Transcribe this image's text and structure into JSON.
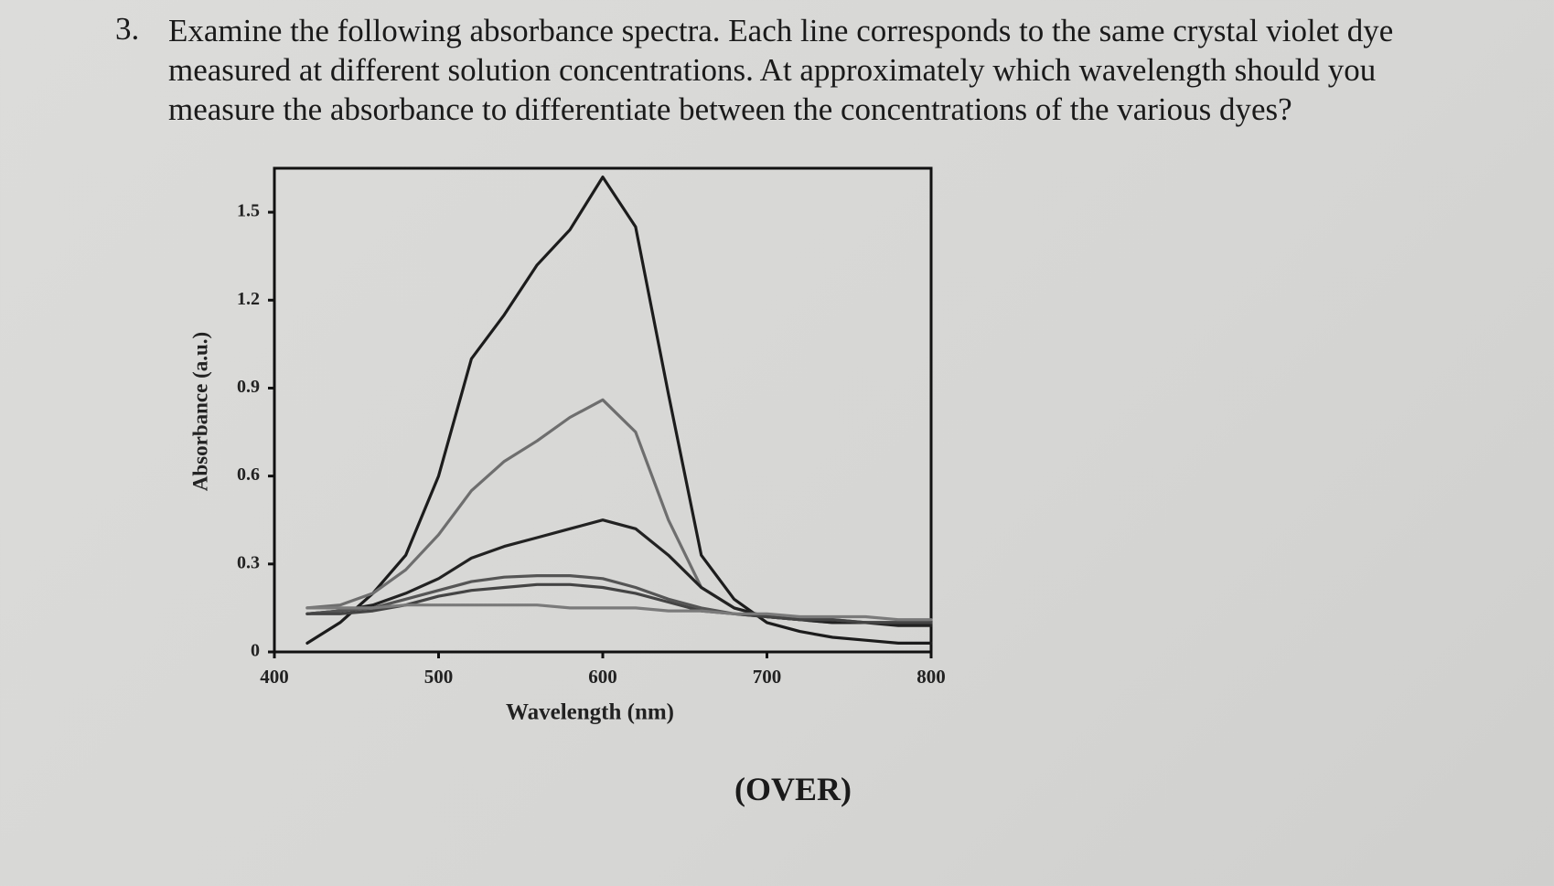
{
  "question": {
    "number": "3.",
    "text": "Examine the following absorbance spectra. Each line corresponds to the same crystal violet dye measured at different solution concentrations. At approximately which wavelength should you measure the absorbance to differentiate between the concentrations of the various dyes?"
  },
  "chart_data": {
    "type": "line",
    "x_label": "Wavelength (nm)",
    "y_label": "Absorbance (a.u.)",
    "x": [
      420,
      440,
      460,
      480,
      500,
      520,
      540,
      560,
      580,
      600,
      620,
      640,
      660,
      680,
      700,
      720,
      740,
      760,
      780,
      800
    ],
    "series": [
      {
        "color": "#1c1c1c",
        "values": [
          0.03,
          0.1,
          0.2,
          0.33,
          0.6,
          1.0,
          1.15,
          1.32,
          1.44,
          1.62,
          1.45,
          0.88,
          0.33,
          0.18,
          0.1,
          0.07,
          0.05,
          0.04,
          0.03,
          0.03
        ]
      },
      {
        "color": "#6e6e6e",
        "values": [
          0.15,
          0.16,
          0.2,
          0.28,
          0.4,
          0.55,
          0.65,
          0.72,
          0.8,
          0.86,
          0.75,
          0.45,
          0.22,
          0.15,
          0.12,
          0.11,
          0.1,
          0.1,
          0.1,
          0.1
        ]
      },
      {
        "color": "#222222",
        "values": [
          0.13,
          0.14,
          0.16,
          0.2,
          0.25,
          0.32,
          0.36,
          0.39,
          0.42,
          0.45,
          0.42,
          0.33,
          0.22,
          0.15,
          0.12,
          0.11,
          0.1,
          0.1,
          0.09,
          0.09
        ]
      },
      {
        "color": "#555555",
        "values": [
          0.13,
          0.14,
          0.15,
          0.18,
          0.21,
          0.24,
          0.255,
          0.26,
          0.26,
          0.25,
          0.22,
          0.18,
          0.15,
          0.13,
          0.12,
          0.11,
          0.11,
          0.1,
          0.1,
          0.1
        ]
      },
      {
        "color": "#444444",
        "values": [
          0.13,
          0.13,
          0.14,
          0.16,
          0.19,
          0.21,
          0.22,
          0.23,
          0.23,
          0.22,
          0.2,
          0.17,
          0.14,
          0.13,
          0.12,
          0.11,
          0.11,
          0.1,
          0.1,
          0.1
        ]
      },
      {
        "color": "#7a7a7a",
        "values": [
          0.15,
          0.15,
          0.15,
          0.16,
          0.16,
          0.16,
          0.16,
          0.16,
          0.15,
          0.15,
          0.15,
          0.14,
          0.14,
          0.13,
          0.13,
          0.12,
          0.12,
          0.12,
          0.11,
          0.11
        ]
      }
    ],
    "xlim": [
      400,
      800
    ],
    "xticks": [
      400,
      500,
      600,
      700,
      800
    ],
    "ylim": [
      0,
      1.65
    ],
    "yticks": [
      0,
      0.3,
      0.6,
      0.9,
      1.2,
      1.5
    ]
  },
  "footer": "(OVER)"
}
